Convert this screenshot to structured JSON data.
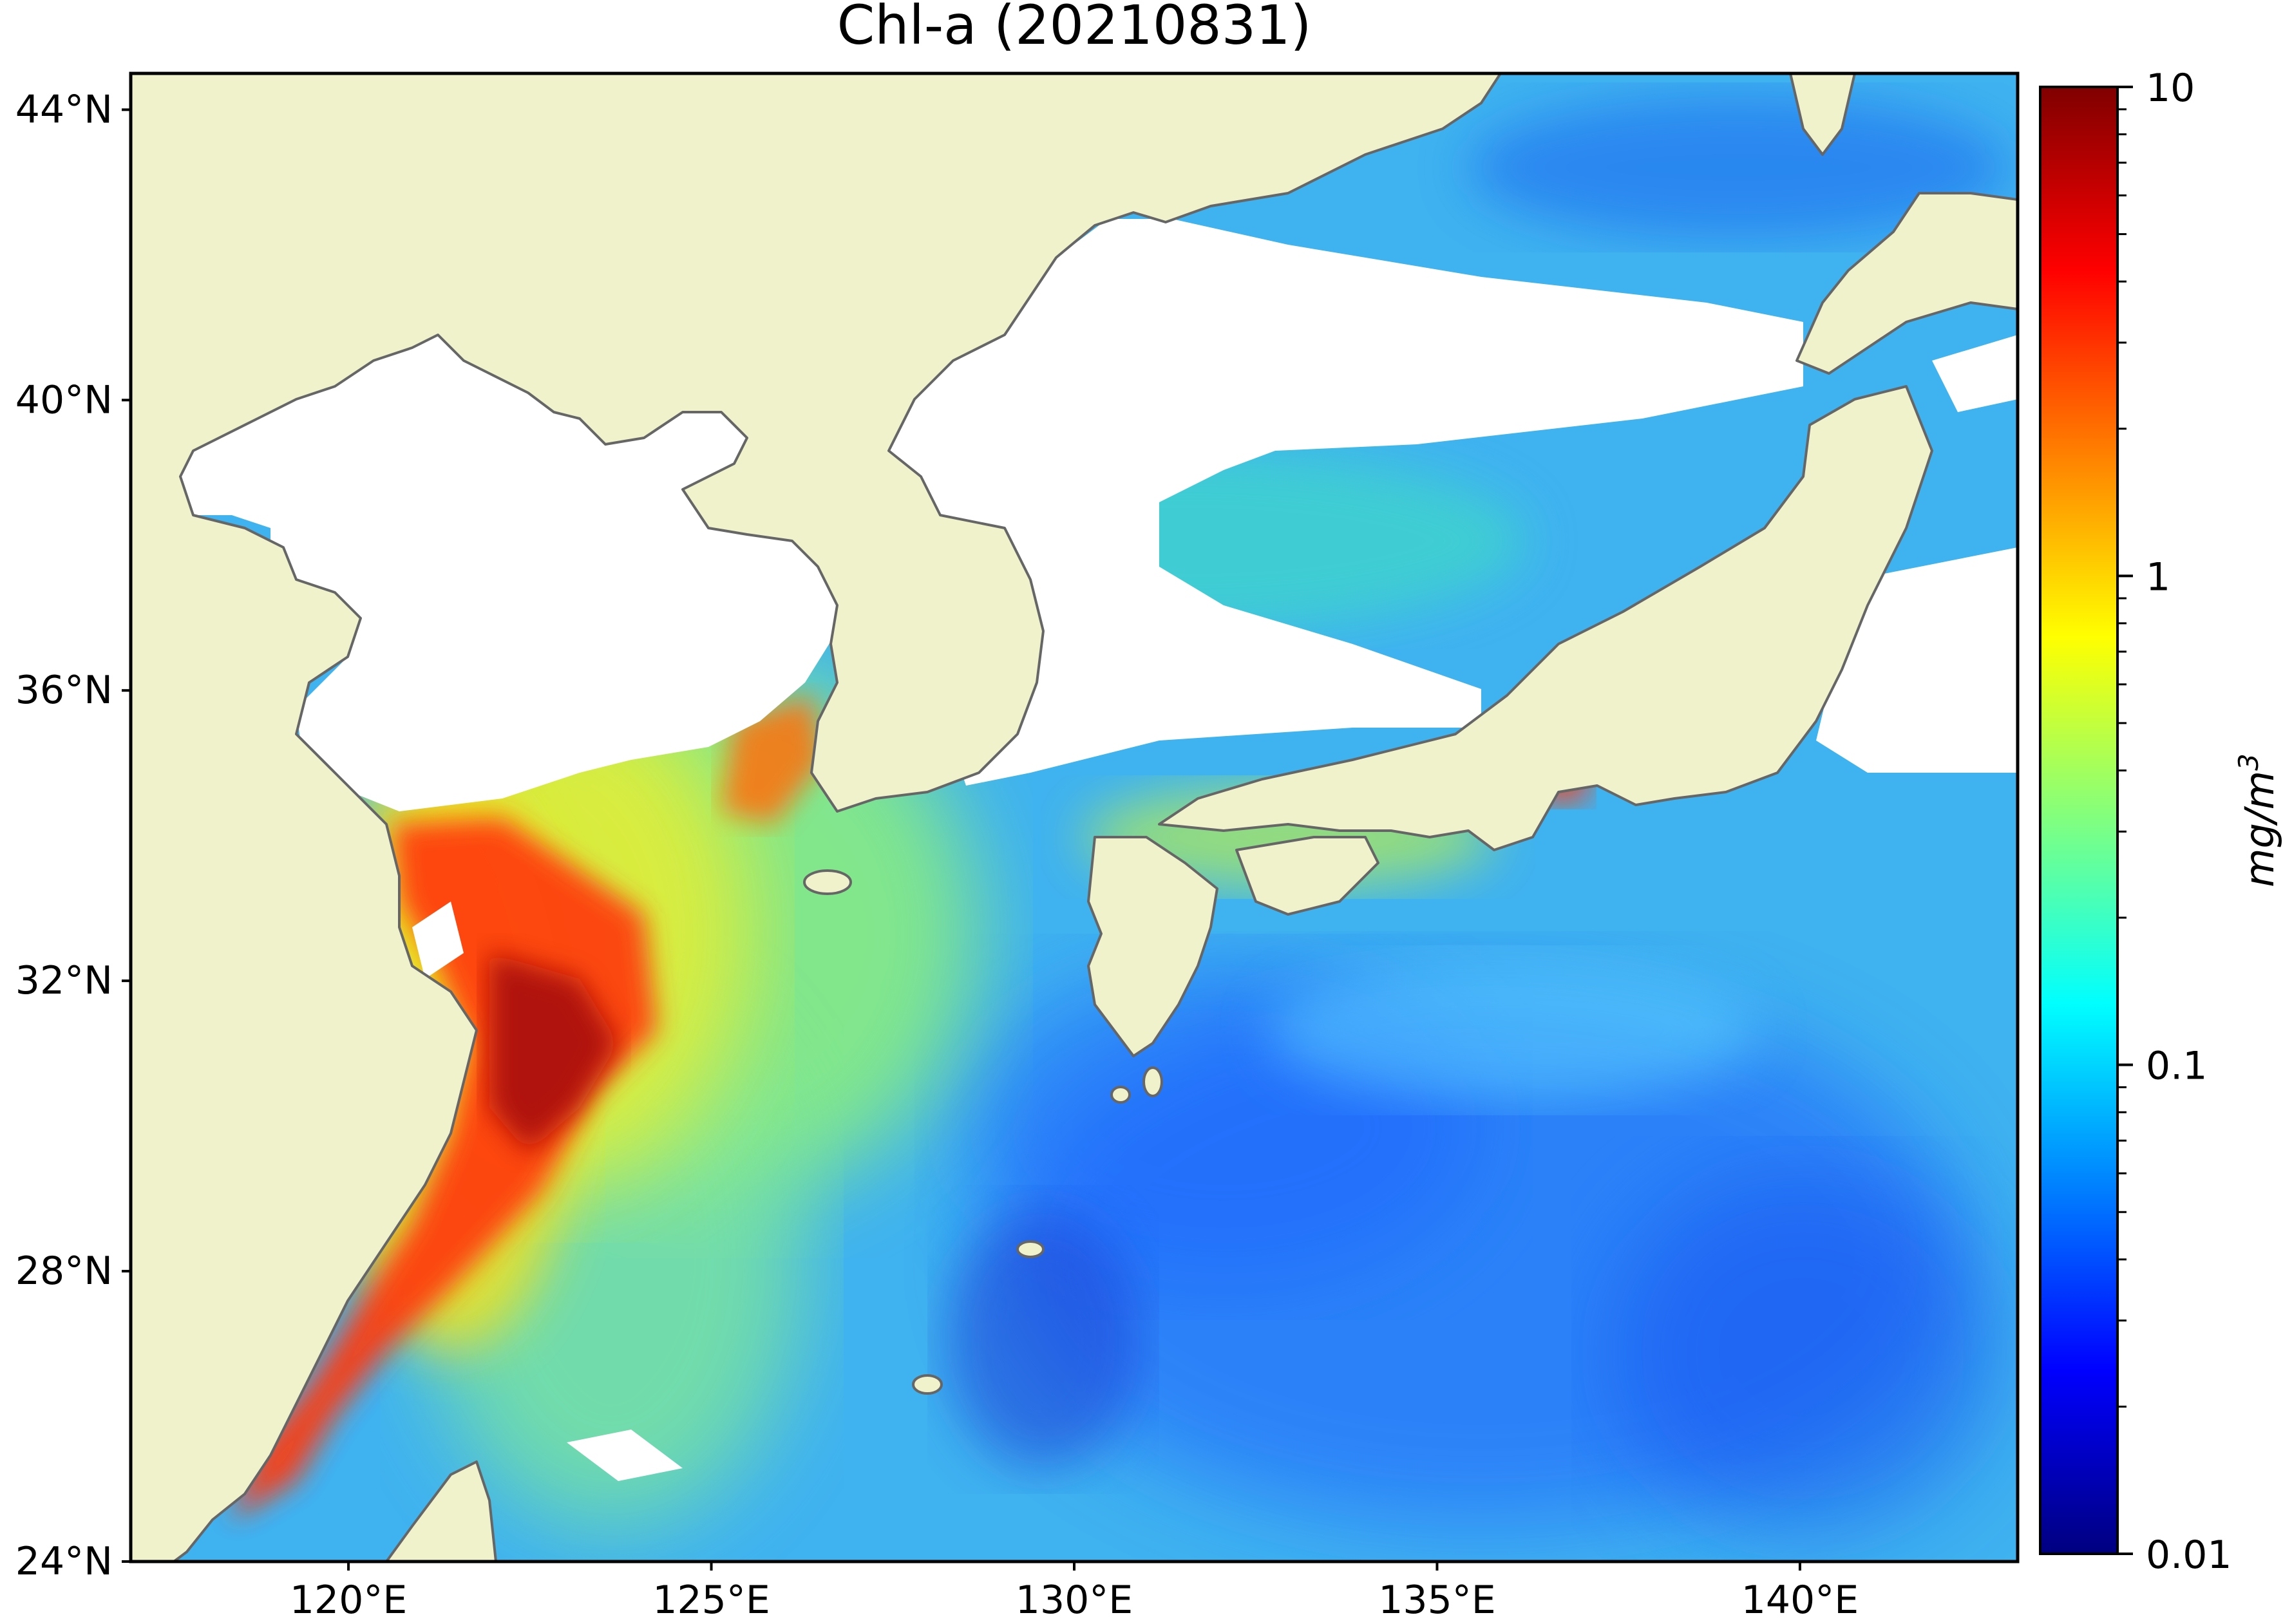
{
  "title": "Chl-a (20210831)",
  "map": {
    "lon_range": [
      117,
      143
    ],
    "lat_range": [
      24,
      44.5
    ],
    "lon_ticks": [
      {
        "value": 120,
        "label": "120°E"
      },
      {
        "value": 125,
        "label": "125°E"
      },
      {
        "value": 130,
        "label": "130°E"
      },
      {
        "value": 135,
        "label": "135°E"
      },
      {
        "value": 140,
        "label": "140°E"
      }
    ],
    "lat_ticks": [
      {
        "value": 44,
        "label": "44°N"
      },
      {
        "value": 40,
        "label": "40°N"
      },
      {
        "value": 36,
        "label": "36°N"
      },
      {
        "value": 32,
        "label": "32°N"
      },
      {
        "value": 28,
        "label": "28°N"
      },
      {
        "value": 24,
        "label": "24°N"
      }
    ],
    "land_color": "#f0f2cb",
    "coast_color": "#666666",
    "cloud_color": "#ffffff"
  },
  "colorbar": {
    "label_main": "mg/m",
    "label_sup": "3",
    "scale": "log",
    "range": [
      0.01,
      10
    ],
    "ticks": [
      {
        "value": 10,
        "label": "10"
      },
      {
        "value": 1,
        "label": "1"
      },
      {
        "value": 0.1,
        "label": "0.1"
      },
      {
        "value": 0.01,
        "label": "0.01"
      }
    ],
    "colormap": "jet",
    "colors": [
      "#000080",
      "#0000ff",
      "#0080ff",
      "#00ffff",
      "#80ff80",
      "#ffff00",
      "#ff8000",
      "#ff0000",
      "#800000"
    ]
  }
}
